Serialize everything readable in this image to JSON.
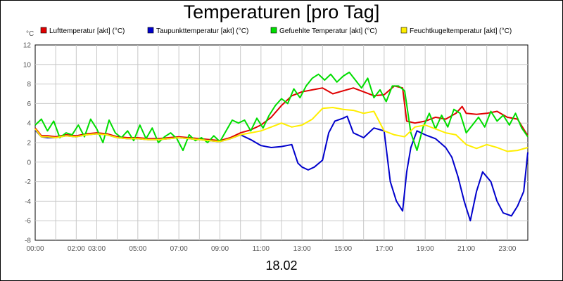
{
  "chart_data": {
    "type": "line",
    "title": "Temperaturen [pro Tag]",
    "ylabel": "°C",
    "xlabel": "18.02",
    "xlim": [
      0,
      24
    ],
    "ylim": [
      -8,
      12
    ],
    "grid": true,
    "legend_position": "top",
    "y_ticks": [
      -8,
      -6,
      -4,
      -2,
      0,
      2,
      4,
      6,
      8,
      10,
      12
    ],
    "x_ticks": [
      {
        "v": 0,
        "label": "00:00"
      },
      {
        "v": 2,
        "label": "02:00"
      },
      {
        "v": 3,
        "label": "03:00"
      },
      {
        "v": 5,
        "label": "05:00"
      },
      {
        "v": 7,
        "label": "07:00"
      },
      {
        "v": 9,
        "label": "09:00"
      },
      {
        "v": 11,
        "label": "11:00"
      },
      {
        "v": 13,
        "label": "13:00"
      },
      {
        "v": 15,
        "label": "15:00"
      },
      {
        "v": 17,
        "label": "17:00"
      },
      {
        "v": 19,
        "label": "19:00"
      },
      {
        "v": 21,
        "label": "21:00"
      },
      {
        "v": 23,
        "label": "23:00"
      }
    ],
    "series": [
      {
        "name": "Lufttemperatur [akt] (°C)",
        "color": "#e00000",
        "points": [
          [
            0,
            3.5
          ],
          [
            0.3,
            2.7
          ],
          [
            0.6,
            2.7
          ],
          [
            1,
            2.6
          ],
          [
            1.5,
            2.8
          ],
          [
            2,
            2.7
          ],
          [
            2.5,
            2.9
          ],
          [
            3,
            3.0
          ],
          [
            3.5,
            2.9
          ],
          [
            4,
            2.6
          ],
          [
            4.5,
            2.5
          ],
          [
            5,
            2.5
          ],
          [
            5.5,
            2.4
          ],
          [
            6,
            2.4
          ],
          [
            6.5,
            2.5
          ],
          [
            7,
            2.6
          ],
          [
            7.5,
            2.5
          ],
          [
            8,
            2.4
          ],
          [
            8.5,
            2.3
          ],
          [
            9,
            2.2
          ],
          [
            9.5,
            2.5
          ],
          [
            10,
            3.0
          ],
          [
            10.5,
            3.3
          ],
          [
            11,
            3.8
          ],
          [
            11.5,
            4.6
          ],
          [
            12,
            5.8
          ],
          [
            12.5,
            6.8
          ],
          [
            13,
            7.2
          ],
          [
            13.5,
            7.4
          ],
          [
            14,
            7.6
          ],
          [
            14.5,
            7.0
          ],
          [
            15,
            7.3
          ],
          [
            15.5,
            7.6
          ],
          [
            16,
            7.2
          ],
          [
            16.5,
            6.8
          ],
          [
            17,
            6.9
          ],
          [
            17.5,
            7.8
          ],
          [
            17.9,
            7.6
          ],
          [
            18.1,
            4.2
          ],
          [
            18.5,
            4.0
          ],
          [
            19,
            4.2
          ],
          [
            19.5,
            4.6
          ],
          [
            20,
            4.4
          ],
          [
            20.5,
            5.0
          ],
          [
            20.8,
            5.7
          ],
          [
            21,
            5.0
          ],
          [
            21.5,
            4.9
          ],
          [
            22,
            5.0
          ],
          [
            22.5,
            5.2
          ],
          [
            23,
            4.6
          ],
          [
            23.5,
            4.4
          ],
          [
            24,
            2.7
          ]
        ]
      },
      {
        "name": "Taupunkttemperatur [akt] (°C)",
        "color": "#0000cc",
        "points": [
          [
            0,
            3.3
          ],
          [
            0.3,
            2.6
          ],
          [
            0.6,
            2.5
          ],
          [
            1,
            2.5
          ],
          [
            1.5,
            2.7
          ],
          [
            2,
            2.6
          ],
          [
            2.5,
            2.8
          ],
          [
            3,
            2.9
          ],
          [
            3.5,
            2.8
          ],
          [
            4,
            2.5
          ],
          [
            4.5,
            2.4
          ],
          [
            5,
            2.4
          ],
          [
            5.5,
            2.3
          ],
          [
            6,
            2.3
          ],
          [
            6.5,
            2.4
          ],
          [
            7,
            2.5
          ],
          [
            7.5,
            2.4
          ],
          [
            8,
            2.3
          ],
          [
            8.5,
            2.2
          ],
          [
            9,
            2.1
          ],
          [
            9.5,
            2.4
          ],
          [
            10,
            2.8
          ],
          [
            10.5,
            2.3
          ],
          [
            11,
            1.7
          ],
          [
            11.5,
            1.5
          ],
          [
            12,
            1.6
          ],
          [
            12.5,
            1.8
          ],
          [
            12.8,
            -0.1
          ],
          [
            13,
            -0.5
          ],
          [
            13.3,
            -0.8
          ],
          [
            13.6,
            -0.5
          ],
          [
            14,
            0.2
          ],
          [
            14.3,
            3.0
          ],
          [
            14.6,
            4.2
          ],
          [
            15,
            4.5
          ],
          [
            15.2,
            4.7
          ],
          [
            15.5,
            3.0
          ],
          [
            16,
            2.5
          ],
          [
            16.5,
            3.5
          ],
          [
            17,
            3.2
          ],
          [
            17.3,
            -2.0
          ],
          [
            17.6,
            -4.0
          ],
          [
            17.9,
            -5.0
          ],
          [
            18.1,
            -1.0
          ],
          [
            18.3,
            1.5
          ],
          [
            18.6,
            3.2
          ],
          [
            19,
            2.8
          ],
          [
            19.5,
            2.4
          ],
          [
            20,
            1.5
          ],
          [
            20.3,
            0.5
          ],
          [
            20.6,
            -1.5
          ],
          [
            20.9,
            -4.0
          ],
          [
            21.2,
            -6.0
          ],
          [
            21.5,
            -3.0
          ],
          [
            21.8,
            -1.0
          ],
          [
            22.2,
            -2.0
          ],
          [
            22.5,
            -4.0
          ],
          [
            22.8,
            -5.2
          ],
          [
            23.2,
            -5.5
          ],
          [
            23.5,
            -4.5
          ],
          [
            23.8,
            -3.0
          ],
          [
            24,
            1.0
          ]
        ]
      },
      {
        "name": "Gefuehlte Temperatur [akt] (°C)",
        "color": "#00dd00",
        "points": [
          [
            0,
            3.8
          ],
          [
            0.3,
            4.4
          ],
          [
            0.6,
            3.2
          ],
          [
            0.9,
            4.2
          ],
          [
            1.2,
            2.5
          ],
          [
            1.5,
            3.0
          ],
          [
            1.8,
            2.8
          ],
          [
            2.1,
            3.8
          ],
          [
            2.4,
            2.6
          ],
          [
            2.7,
            4.4
          ],
          [
            3,
            3.4
          ],
          [
            3.3,
            2.0
          ],
          [
            3.6,
            4.3
          ],
          [
            3.9,
            3.0
          ],
          [
            4.2,
            2.5
          ],
          [
            4.5,
            3.2
          ],
          [
            4.8,
            2.2
          ],
          [
            5.1,
            3.8
          ],
          [
            5.4,
            2.4
          ],
          [
            5.7,
            3.5
          ],
          [
            6,
            2.0
          ],
          [
            6.3,
            2.6
          ],
          [
            6.6,
            3.0
          ],
          [
            6.9,
            2.4
          ],
          [
            7.2,
            1.2
          ],
          [
            7.5,
            2.8
          ],
          [
            7.8,
            2.2
          ],
          [
            8.1,
            2.5
          ],
          [
            8.4,
            2.0
          ],
          [
            8.7,
            2.7
          ],
          [
            9,
            2.1
          ],
          [
            9.3,
            3.2
          ],
          [
            9.6,
            4.3
          ],
          [
            9.9,
            4.0
          ],
          [
            10.2,
            4.3
          ],
          [
            10.5,
            3.2
          ],
          [
            10.8,
            4.5
          ],
          [
            11.1,
            3.5
          ],
          [
            11.4,
            4.8
          ],
          [
            11.7,
            5.8
          ],
          [
            12,
            6.5
          ],
          [
            12.3,
            6.0
          ],
          [
            12.6,
            7.5
          ],
          [
            12.9,
            6.6
          ],
          [
            13.2,
            7.8
          ],
          [
            13.5,
            8.6
          ],
          [
            13.8,
            9.0
          ],
          [
            14.1,
            8.4
          ],
          [
            14.4,
            9.0
          ],
          [
            14.7,
            8.2
          ],
          [
            15,
            8.8
          ],
          [
            15.3,
            9.2
          ],
          [
            15.6,
            8.4
          ],
          [
            15.9,
            7.6
          ],
          [
            16.2,
            8.6
          ],
          [
            16.5,
            6.6
          ],
          [
            16.8,
            7.4
          ],
          [
            17.1,
            6.2
          ],
          [
            17.4,
            7.8
          ],
          [
            17.7,
            7.8
          ],
          [
            18,
            7.3
          ],
          [
            18.3,
            3.0
          ],
          [
            18.6,
            1.2
          ],
          [
            18.9,
            3.6
          ],
          [
            19.2,
            5.0
          ],
          [
            19.5,
            3.4
          ],
          [
            19.8,
            4.8
          ],
          [
            20.1,
            3.6
          ],
          [
            20.4,
            5.4
          ],
          [
            20.7,
            5.0
          ],
          [
            21,
            3.0
          ],
          [
            21.3,
            3.8
          ],
          [
            21.6,
            4.6
          ],
          [
            21.9,
            3.6
          ],
          [
            22.2,
            5.2
          ],
          [
            22.5,
            4.2
          ],
          [
            22.8,
            4.8
          ],
          [
            23.1,
            3.8
          ],
          [
            23.4,
            5.0
          ],
          [
            23.7,
            3.5
          ],
          [
            24,
            2.6
          ]
        ]
      },
      {
        "name": "Feuchtkugeltemperatur [akt] (°C)",
        "color": "#ffee00",
        "points": [
          [
            0,
            3.4
          ],
          [
            0.3,
            2.6
          ],
          [
            0.6,
            2.6
          ],
          [
            1,
            2.5
          ],
          [
            1.5,
            2.7
          ],
          [
            2,
            2.6
          ],
          [
            2.5,
            2.8
          ],
          [
            3,
            2.9
          ],
          [
            3.5,
            2.8
          ],
          [
            4,
            2.5
          ],
          [
            4.5,
            2.4
          ],
          [
            5,
            2.4
          ],
          [
            5.5,
            2.3
          ],
          [
            6,
            2.3
          ],
          [
            6.5,
            2.4
          ],
          [
            7,
            2.5
          ],
          [
            7.5,
            2.4
          ],
          [
            8,
            2.3
          ],
          [
            8.5,
            2.2
          ],
          [
            9,
            2.1
          ],
          [
            9.5,
            2.4
          ],
          [
            10,
            2.8
          ],
          [
            10.5,
            3.0
          ],
          [
            11,
            3.2
          ],
          [
            11.5,
            3.6
          ],
          [
            12,
            4.0
          ],
          [
            12.5,
            3.6
          ],
          [
            13,
            3.8
          ],
          [
            13.5,
            4.4
          ],
          [
            14,
            5.5
          ],
          [
            14.5,
            5.6
          ],
          [
            15,
            5.4
          ],
          [
            15.5,
            5.3
          ],
          [
            16,
            5.0
          ],
          [
            16.5,
            5.2
          ],
          [
            17,
            3.2
          ],
          [
            17.5,
            2.8
          ],
          [
            18,
            2.6
          ],
          [
            18.5,
            3.6
          ],
          [
            19,
            3.8
          ],
          [
            19.5,
            3.4
          ],
          [
            20,
            3.0
          ],
          [
            20.5,
            2.8
          ],
          [
            21,
            1.8
          ],
          [
            21.5,
            1.4
          ],
          [
            22,
            1.8
          ],
          [
            22.5,
            1.5
          ],
          [
            23,
            1.1
          ],
          [
            23.5,
            1.2
          ],
          [
            24,
            1.5
          ]
        ]
      }
    ]
  }
}
